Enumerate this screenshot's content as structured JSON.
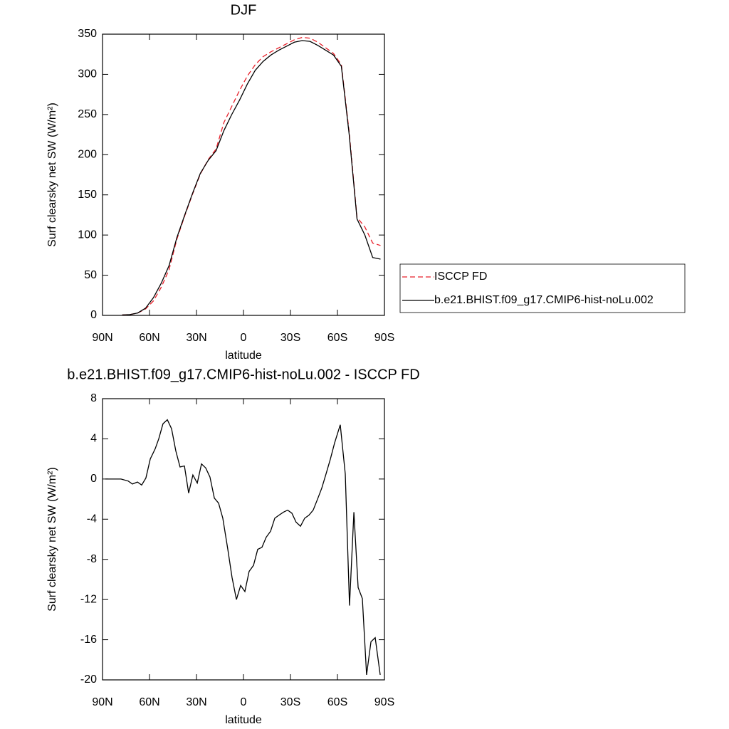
{
  "chart_data": [
    {
      "type": "line",
      "title": "DJF",
      "xlabel": "latitude",
      "ylabel": "Surf clearsky net SW (W/m²)",
      "x": [
        87.5,
        82.5,
        77.5,
        72.5,
        67.5,
        62.5,
        57.5,
        52.5,
        47.5,
        42.5,
        37.5,
        32.5,
        27.5,
        22.5,
        17.5,
        12.5,
        7.5,
        2.5,
        -2.5,
        -7.5,
        -12.5,
        -17.5,
        -22.5,
        -27.5,
        -32.5,
        -37.5,
        -42.5,
        -47.5,
        -52.5,
        -57.5,
        -62.5,
        -67.5,
        -72.5,
        -77.5,
        -82.5,
        -87.5
      ],
      "series": [
        {
          "name": "ISCCP FD",
          "color": "#e8202a",
          "dash": true,
          "values": [
            null,
            null,
            0.5,
            1,
            3,
            8,
            18,
            35,
            57,
            95,
            124,
            151,
            176,
            194,
            207,
            240,
            260,
            280,
            298,
            312,
            322,
            328,
            333,
            338,
            343,
            346,
            345,
            340,
            333,
            326,
            312,
            228,
            122,
            110,
            90,
            87
          ]
        },
        {
          "name": "b.e21.BHIST.f09_g17.CMIP6-hist-noLu.002",
          "color": "#000000",
          "dash": false,
          "values": [
            null,
            null,
            0.5,
            1,
            3,
            9,
            22,
            40,
            62,
            97,
            125,
            152,
            177,
            193,
            205,
            230,
            250,
            268,
            288,
            305,
            316,
            324,
            330,
            335,
            340,
            342,
            341,
            336,
            330,
            324,
            310,
            225,
            120,
            100,
            72,
            70
          ]
        }
      ],
      "xlim": [
        90,
        -90
      ],
      "xticks": [
        {
          "value": 90,
          "label": "90N"
        },
        {
          "value": 60,
          "label": "60N"
        },
        {
          "value": 30,
          "label": "30N"
        },
        0,
        {
          "value": -30,
          "label": "30S"
        },
        {
          "value": -60,
          "label": "60S"
        },
        {
          "value": -90,
          "label": "90S"
        }
      ],
      "ylim": [
        0,
        350
      ],
      "yticks": [
        0,
        50,
        100,
        150,
        200,
        250,
        300,
        350
      ],
      "legend": "right"
    },
    {
      "type": "line",
      "title": "b.e21.BHIST.f09_g17.CMIP6-hist-noLu.002 - ISCCP FD",
      "xlabel": "latitude",
      "ylabel": "Surf clearsky net SW (W/m²)",
      "x": [
        88.2,
        78.2,
        73.6,
        70.9,
        67.7,
        65.0,
        62.3,
        59.5,
        56.4,
        54.1,
        51.4,
        48.6,
        45.9,
        43.2,
        40.5,
        37.7,
        35.0,
        32.3,
        29.5,
        26.8,
        24.1,
        21.4,
        18.6,
        15.9,
        13.2,
        10.0,
        7.3,
        4.5,
        1.8,
        -0.9,
        -3.6,
        -6.4,
        -9.1,
        -11.8,
        -14.5,
        -17.3,
        -20.0,
        -22.7,
        -25.5,
        -28.2,
        -30.9,
        -33.6,
        -36.4,
        -39.1,
        -41.8,
        -44.5,
        -47.3,
        -50.0,
        -52.7,
        -55.5,
        -58.2,
        -61.8,
        -65.0,
        -67.7,
        -70.5,
        -73.2,
        -75.9,
        -78.6,
        -81.4,
        -84.1,
        -87.3
      ],
      "series": [
        {
          "color": "#000000",
          "dash": false,
          "values": [
            0,
            0,
            -0.2,
            -0.5,
            -0.3,
            -0.6,
            0.1,
            2,
            3,
            4,
            5.5,
            5.9,
            5,
            2.8,
            1.2,
            1.3,
            -1.4,
            0.4,
            -0.4,
            1.5,
            1.1,
            0.2,
            -1.9,
            -2.4,
            -3.9,
            -7,
            -9.8,
            -12,
            -10.6,
            -11.2,
            -9.2,
            -8.6,
            -7,
            -6.8,
            -5.8,
            -5.2,
            -3.9,
            -3.6,
            -3.3,
            -3.1,
            -3.4,
            -4.3,
            -4.7,
            -3.9,
            -3.6,
            -3.1,
            -2,
            -0.9,
            0.5,
            2,
            3.6,
            5.4,
            0.5,
            -12.6,
            -3.3,
            -10.8,
            -11.9,
            -19.5,
            -16.2,
            -15.8,
            -19.5
          ]
        }
      ],
      "xlim": [
        90,
        -90
      ],
      "xticks": [
        {
          "value": 90,
          "label": "90N"
        },
        {
          "value": 60,
          "label": "60N"
        },
        {
          "value": 30,
          "label": "30N"
        },
        0,
        {
          "value": -30,
          "label": "30S"
        },
        {
          "value": -60,
          "label": "60S"
        },
        {
          "value": -90,
          "label": "90S"
        }
      ],
      "ylim": [
        -20,
        8
      ],
      "yticks": [
        -20,
        -16,
        -12,
        -8,
        -4,
        0,
        4,
        8
      ]
    }
  ]
}
